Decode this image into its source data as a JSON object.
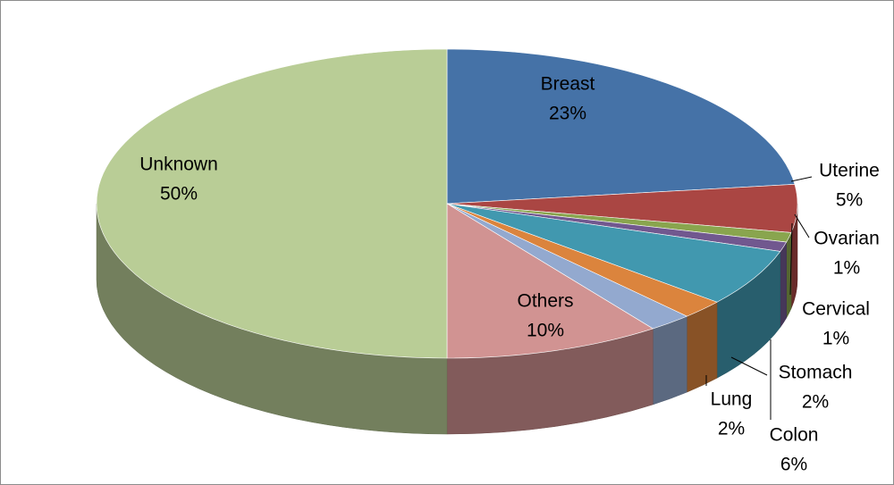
{
  "chart_data": {
    "type": "pie3d",
    "categories": [
      "Breast",
      "Uterine",
      "Ovarian",
      "Cervical",
      "Colon",
      "Stomach",
      "Lung",
      "Others",
      "Unknown"
    ],
    "values": [
      23,
      5,
      1,
      1,
      6,
      2,
      2,
      10,
      50
    ],
    "value_labels": [
      "23%",
      "5%",
      "1%",
      "1%",
      "6%",
      "2%",
      "2%",
      "10%",
      "50%"
    ],
    "colors": [
      "#4572a7",
      "#aa4643",
      "#89a54e",
      "#71588f",
      "#4198af",
      "#db843d",
      "#93a9cf",
      "#d19392",
      "#b9cd96"
    ]
  }
}
